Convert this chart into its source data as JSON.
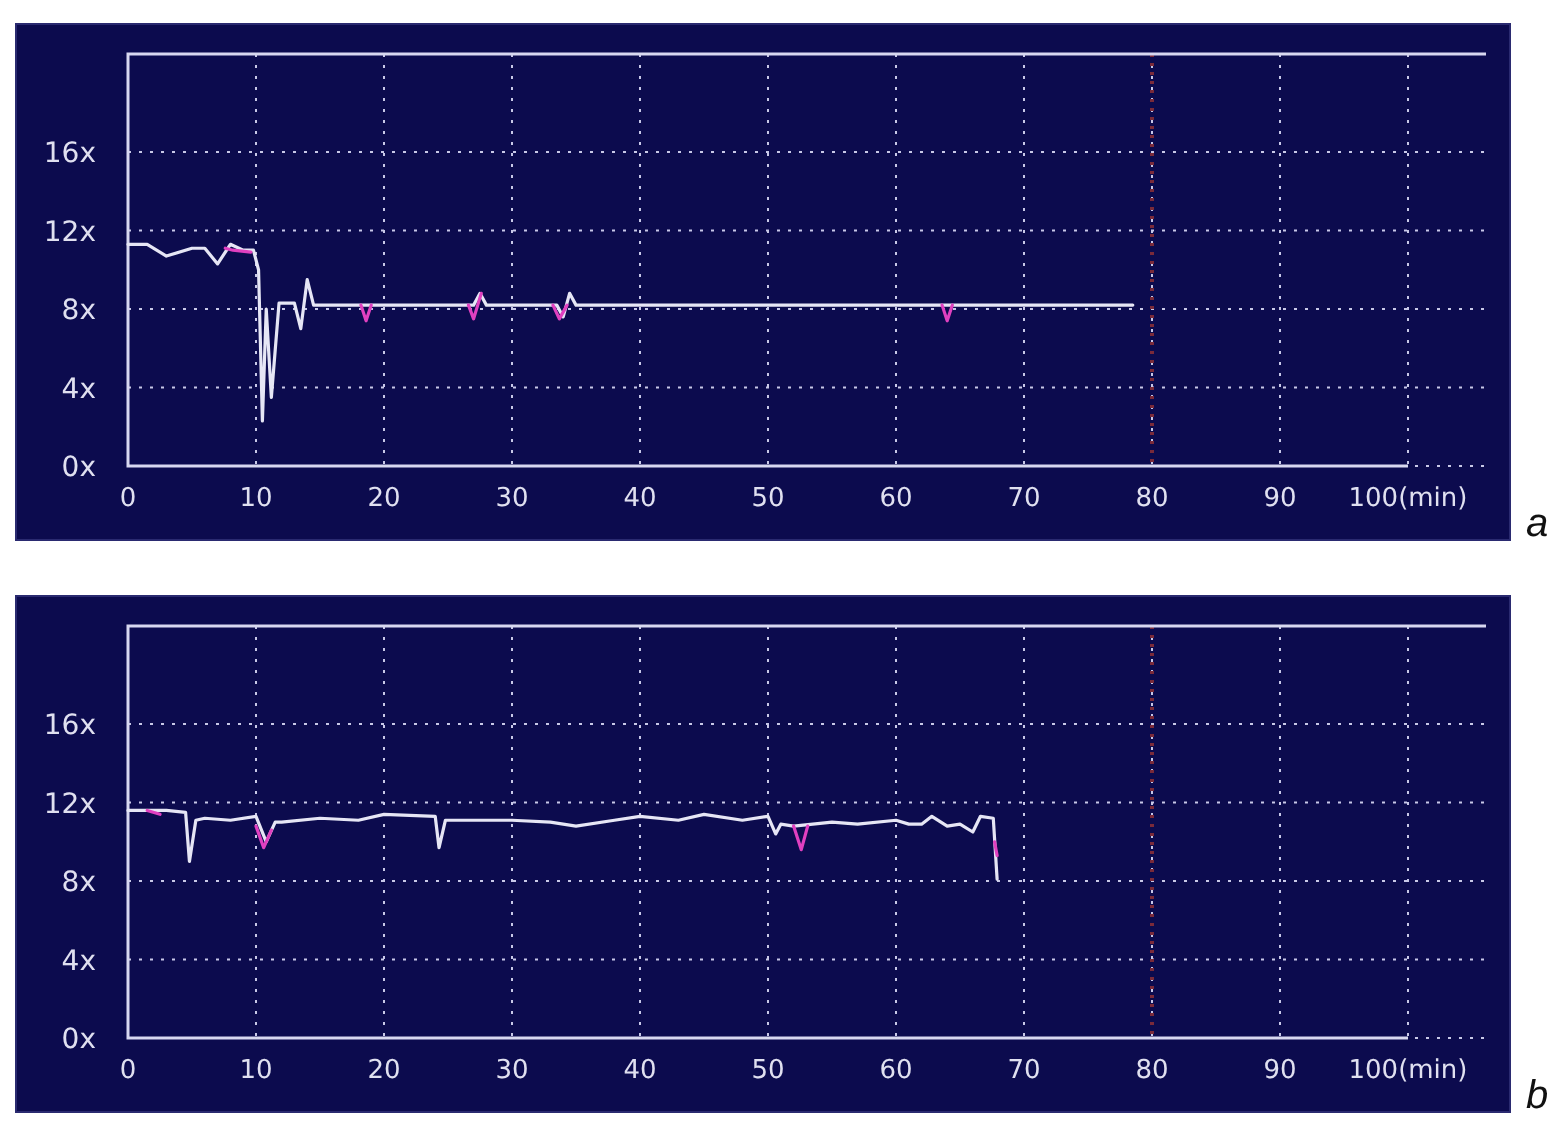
{
  "chart_data": [
    {
      "type": "line",
      "xlim": [
        0,
        100
      ],
      "ylim": [
        0,
        21
      ],
      "xticks": [
        0,
        10,
        20,
        30,
        40,
        50,
        60,
        70,
        80,
        90,
        {
          "value": 100,
          "label": "100(min)"
        }
      ],
      "yticks": [
        {
          "value": 0,
          "label": "0x"
        },
        {
          "value": 4,
          "label": "4x"
        },
        {
          "value": 8,
          "label": "8x"
        },
        {
          "value": 12,
          "label": "12x"
        },
        {
          "value": 16,
          "label": "16x"
        }
      ],
      "grid": true,
      "ref_lines": [
        {
          "axis": "x",
          "value": 80,
          "color": "#7a2a3a",
          "line_style": "dotted"
        }
      ],
      "annotations": [
        "a"
      ],
      "series": [
        {
          "color": "#e6e6f5",
          "x": [
            0,
            1.5,
            3,
            5,
            6,
            7,
            8,
            9,
            9.8,
            10.2,
            10.5,
            10.8,
            11.2,
            11.8,
            13,
            13.5,
            14,
            14.5,
            18,
            27,
            27.5,
            28,
            33.5,
            34,
            34.5,
            35,
            78.5
          ],
          "values": [
            11.3,
            11.3,
            10.7,
            11.1,
            11.1,
            10.3,
            11.3,
            11.0,
            11.0,
            10.0,
            2.3,
            8.0,
            3.5,
            8.3,
            8.3,
            7.0,
            9.5,
            8.2,
            8.2,
            8.2,
            8.8,
            8.2,
            8.2,
            7.6,
            8.8,
            8.2,
            8.2
          ]
        },
        {
          "color": "#e040c0",
          "x": [
            7.6,
            8.2,
            9.6,
            10,
            18.2,
            18.6,
            19.0,
            19.1,
            26.6,
            27.0,
            27.6,
            27.7,
            33.2,
            33.7,
            34.3,
            34.4,
            63.6,
            64.0,
            64.4
          ],
          "values": [
            11.1,
            11.0,
            10.9,
            null,
            8.2,
            7.4,
            8.2,
            null,
            8.2,
            7.5,
            8.8,
            null,
            8.2,
            7.5,
            8.2,
            null,
            8.2,
            7.4,
            8.2
          ]
        }
      ]
    },
    {
      "type": "line",
      "xlim": [
        0,
        100
      ],
      "ylim": [
        0,
        21
      ],
      "xticks": [
        0,
        10,
        20,
        30,
        40,
        50,
        60,
        70,
        80,
        90,
        {
          "value": 100,
          "label": "100(min)"
        }
      ],
      "yticks": [
        {
          "value": 0,
          "label": "0x"
        },
        {
          "value": 4,
          "label": "4x"
        },
        {
          "value": 8,
          "label": "8x"
        },
        {
          "value": 12,
          "label": "12x"
        },
        {
          "value": 16,
          "label": "16x"
        }
      ],
      "grid": true,
      "ref_lines": [
        {
          "axis": "x",
          "value": 80,
          "color": "#7a2a3a",
          "line_style": "dotted"
        }
      ],
      "annotations": [
        "b"
      ],
      "series": [
        {
          "color": "#e6e6f5",
          "x": [
            0,
            3,
            4.5,
            4.8,
            5.3,
            6,
            8,
            10,
            10.8,
            11.5,
            12,
            15,
            18,
            20,
            24,
            24.3,
            24.8,
            26,
            30,
            33,
            35,
            38,
            40,
            43,
            45,
            48,
            50,
            50.6,
            51,
            52,
            55,
            57,
            60,
            61,
            62,
            62.8,
            64,
            65,
            66,
            66.6,
            67.6,
            67.9
          ],
          "values": [
            11.6,
            11.6,
            11.5,
            9.0,
            11.1,
            11.2,
            11.1,
            11.3,
            10.0,
            11.0,
            11.0,
            11.2,
            11.1,
            11.4,
            11.3,
            9.7,
            11.1,
            11.1,
            11.1,
            11.0,
            10.8,
            11.1,
            11.3,
            11.1,
            11.4,
            11.1,
            11.3,
            10.4,
            10.9,
            10.8,
            11.0,
            10.9,
            11.1,
            10.9,
            10.9,
            11.3,
            10.8,
            10.9,
            10.5,
            11.3,
            11.2,
            8.1
          ]
        },
        {
          "color": "#e040c0",
          "x": [
            1.5,
            2.5,
            3.0,
            10.0,
            10.6,
            11.2,
            11.3,
            52.0,
            52.6,
            53.1,
            53.2,
            67.7,
            67.9
          ],
          "values": [
            11.6,
            11.4,
            null,
            10.8,
            9.7,
            10.6,
            null,
            10.8,
            9.6,
            10.8,
            null,
            10.0,
            9.3
          ]
        }
      ]
    }
  ]
}
